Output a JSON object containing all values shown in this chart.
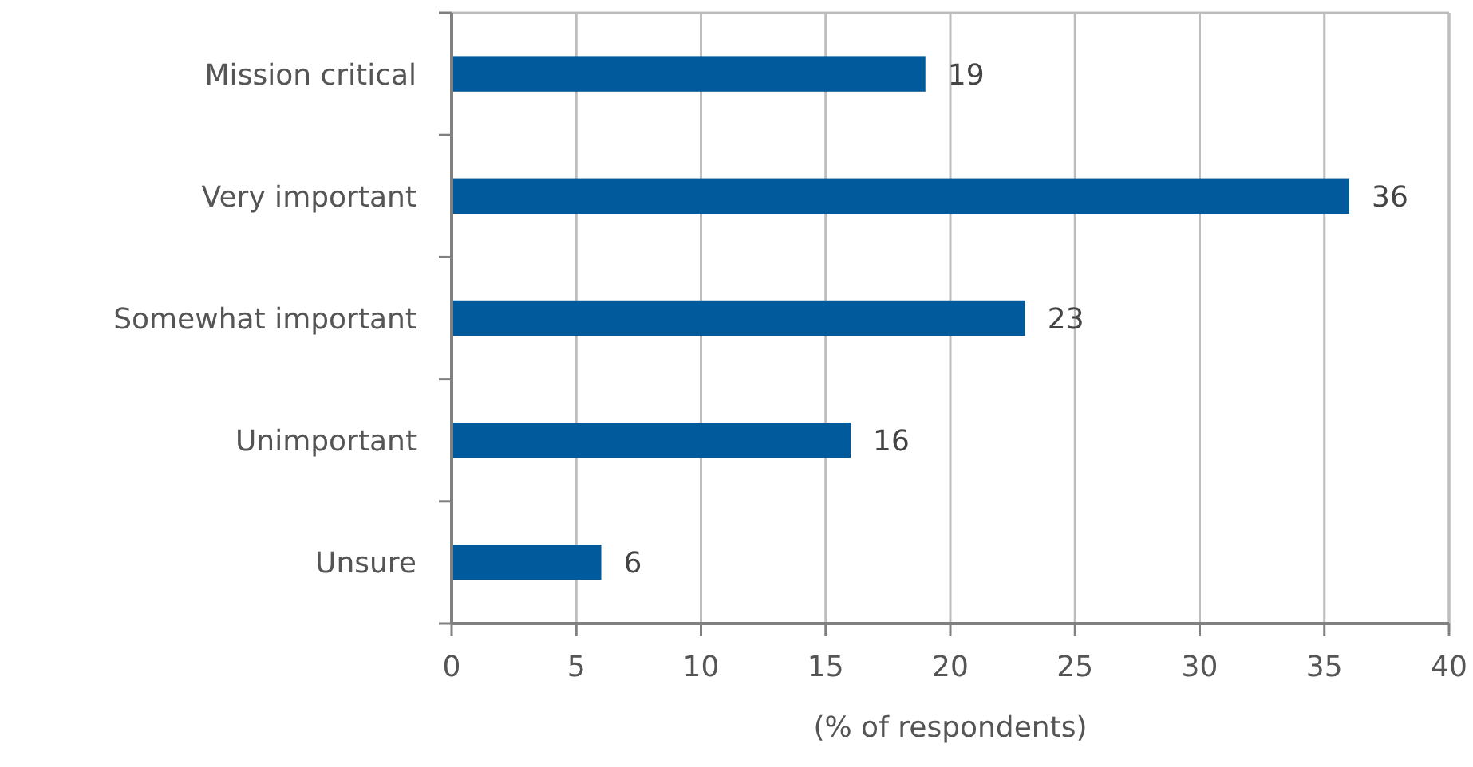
{
  "chart_data": {
    "type": "bar",
    "orientation": "horizontal",
    "categories": [
      "Mission critical",
      "Very important",
      "Somewhat important",
      "Unimportant",
      "Unsure"
    ],
    "values": [
      19,
      36,
      23,
      16,
      6
    ],
    "color": "#005a9c",
    "xlim": [
      0,
      40
    ],
    "xticks": [
      0,
      5,
      10,
      15,
      20,
      25,
      30,
      35,
      40
    ],
    "xlabel": "(% of respondents)",
    "grid": "x",
    "data_labels": true
  }
}
